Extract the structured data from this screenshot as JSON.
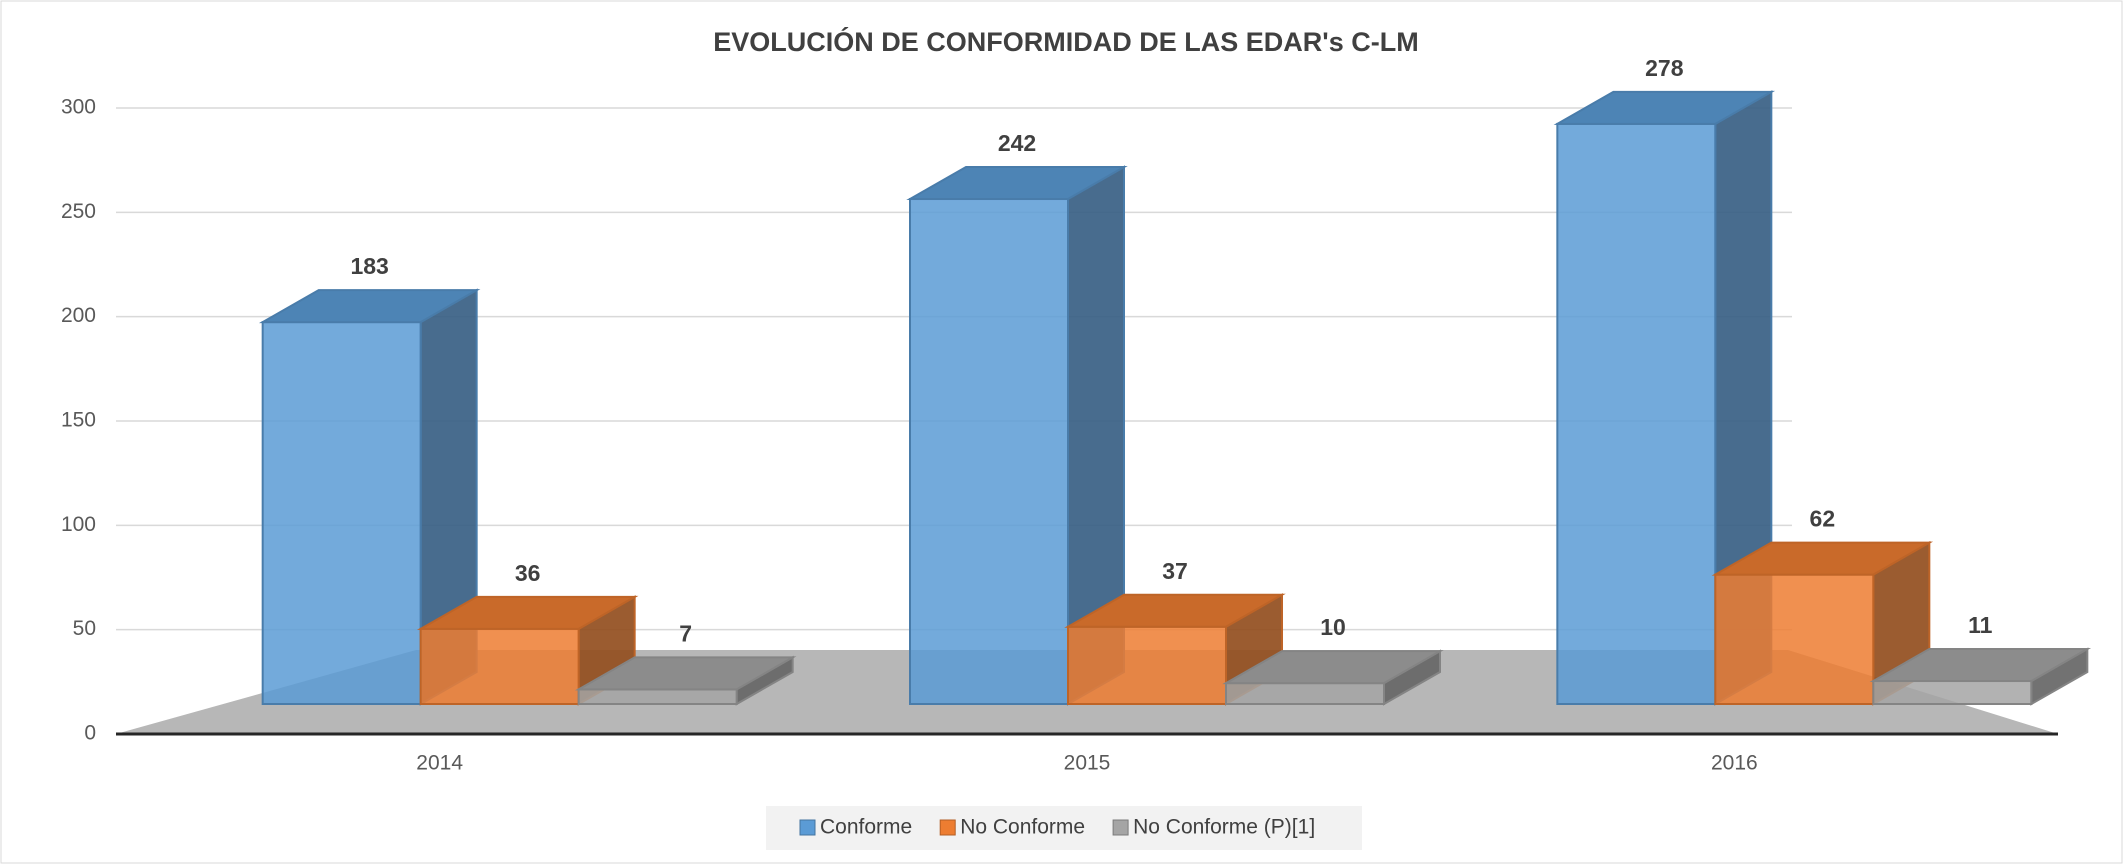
{
  "chart_data": {
    "type": "bar3d",
    "title": "EVOLUCIÓN DE CONFORMIDAD DE LAS EDAR's C-LM",
    "categories": [
      "2014",
      "2015",
      "2016"
    ],
    "series": [
      {
        "name": "Conforme",
        "color": "#5b9bd5",
        "values": [
          183,
          242,
          278
        ]
      },
      {
        "name": "No Conforme",
        "color": "#ed7d31",
        "values": [
          36,
          37,
          62
        ]
      },
      {
        "name": "No Conforme (P)[1]",
        "color": "#a5a5a5",
        "values": [
          7,
          10,
          11
        ]
      }
    ],
    "ylim": [
      0,
      300
    ],
    "yticks": [
      0,
      50,
      100,
      150,
      200,
      250,
      300
    ],
    "grid": true,
    "legend": "bottom"
  }
}
